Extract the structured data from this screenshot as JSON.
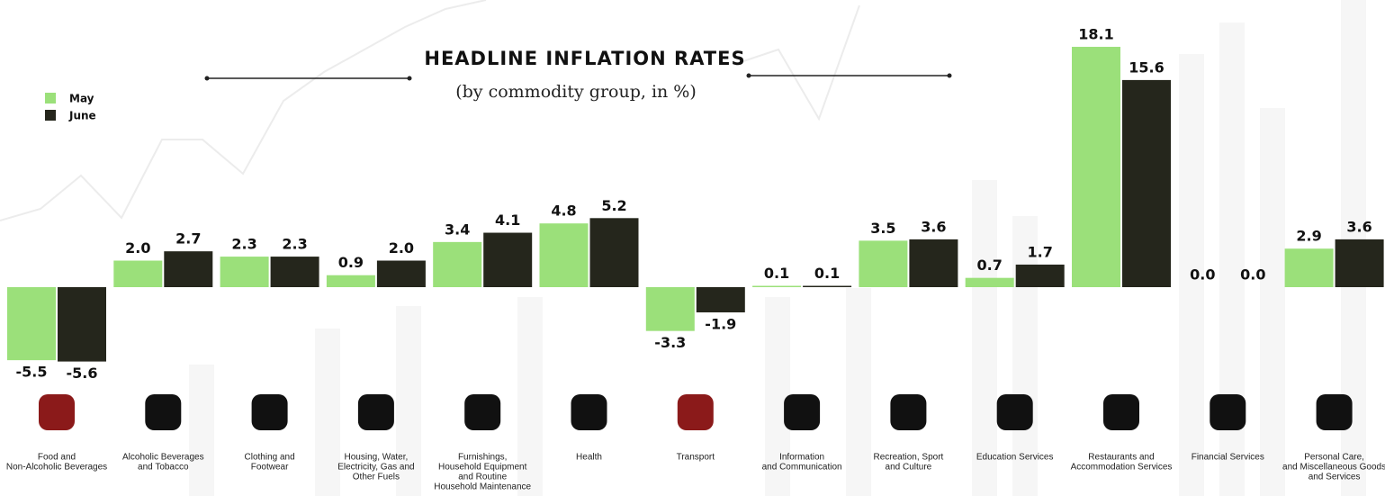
{
  "chart_data": {
    "type": "bar",
    "title": "HEADLINE INFLATION RATES",
    "subtitle": "(by commodity group, in %)",
    "categories": [
      [
        "Food and",
        "Non-Alcoholic Beverages"
      ],
      [
        "Alcoholic Beverages",
        "and Tobacco"
      ],
      [
        "Clothing and",
        "Footwear"
      ],
      [
        "Housing, Water,",
        "Electricity, Gas and",
        "Other Fuels"
      ],
      [
        "Furnishings,",
        "Household Equipment",
        "and Routine",
        "Household Maintenance"
      ],
      [
        "Health"
      ],
      [
        "Transport"
      ],
      [
        "Information",
        "and Communication"
      ],
      [
        "Recreation, Sport",
        "and Culture"
      ],
      [
        "Education Services"
      ],
      [
        "Restaurants and",
        "Accommodation Services"
      ],
      [
        "Financial Services"
      ],
      [
        "Personal Care,",
        "and Miscellaneous Goods",
        "and Services"
      ]
    ],
    "series": [
      {
        "name": "May",
        "color": "#9be07a",
        "values": [
          -5.5,
          2.0,
          2.3,
          0.9,
          3.4,
          4.8,
          -3.3,
          0.1,
          3.5,
          0.7,
          18.1,
          0.0,
          2.9
        ],
        "value_labels": [
          "-5.5",
          "2.0",
          "2.3",
          "0.9",
          "3.4",
          "4.8",
          "-3.3",
          "0.1",
          "3.5",
          "0.7",
          "18.1",
          "0.0",
          "2.9"
        ]
      },
      {
        "name": "June",
        "color": "#25261c",
        "values": [
          -5.6,
          2.7,
          2.3,
          2.0,
          4.1,
          5.2,
          -1.9,
          0.1,
          3.6,
          1.7,
          15.6,
          0.0,
          3.6
        ],
        "value_labels": [
          "-5.6",
          "2.7",
          "2.3",
          "2.0",
          "4.1",
          "5.2",
          "-1.9",
          "0.1",
          "3.6",
          "1.7",
          "15.6",
          "0.0",
          "3.6"
        ]
      }
    ],
    "legend": "top-left"
  }
}
